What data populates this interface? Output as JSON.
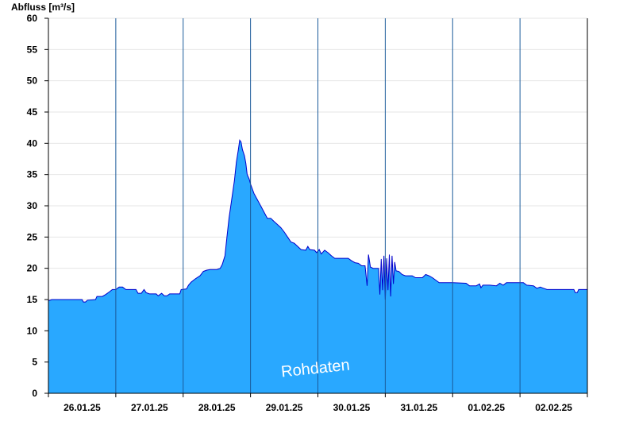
{
  "chart_data": {
    "type": "area",
    "ylabel": "Abfluss [m³/s]",
    "watermark": "Rohdaten",
    "ylim": [
      0,
      60
    ],
    "yticks": [
      0,
      5,
      10,
      15,
      20,
      25,
      30,
      35,
      40,
      45,
      50,
      55,
      60
    ],
    "xlim": [
      0,
      8
    ],
    "x_unit": "days",
    "days": [
      "26.01.25",
      "27.01.25",
      "28.01.25",
      "29.01.25",
      "30.01.25",
      "31.01.25",
      "01.02.25",
      "02.02.25"
    ],
    "grid_horizontal": true,
    "day_separators": true,
    "colors": {
      "fill": "#29a8ff",
      "line": "#0000cc",
      "grid": "#e6e6e6",
      "separator": "#1a5a9a",
      "axis": "#000000"
    },
    "series": [
      {
        "values": [
          [
            0.0,
            14.8
          ],
          [
            0.05,
            15.0
          ],
          [
            0.3,
            15.0
          ],
          [
            0.5,
            15.0
          ],
          [
            0.52,
            14.6
          ],
          [
            0.55,
            14.6
          ],
          [
            0.58,
            14.9
          ],
          [
            0.7,
            15.0
          ],
          [
            0.72,
            15.5
          ],
          [
            0.8,
            15.5
          ],
          [
            0.85,
            15.8
          ],
          [
            0.9,
            16.2
          ],
          [
            0.95,
            16.6
          ],
          [
            1.0,
            16.6
          ],
          [
            1.05,
            17.0
          ],
          [
            1.1,
            17.0
          ],
          [
            1.15,
            16.6
          ],
          [
            1.3,
            16.6
          ],
          [
            1.33,
            16.0
          ],
          [
            1.38,
            16.0
          ],
          [
            1.42,
            16.6
          ],
          [
            1.45,
            16.1
          ],
          [
            1.5,
            15.9
          ],
          [
            1.6,
            15.9
          ],
          [
            1.63,
            15.6
          ],
          [
            1.68,
            16.0
          ],
          [
            1.72,
            15.6
          ],
          [
            1.76,
            15.6
          ],
          [
            1.8,
            15.9
          ],
          [
            1.95,
            15.9
          ],
          [
            1.97,
            16.6
          ],
          [
            2.05,
            16.7
          ],
          [
            2.08,
            17.3
          ],
          [
            2.12,
            17.8
          ],
          [
            2.18,
            18.3
          ],
          [
            2.25,
            18.8
          ],
          [
            2.3,
            19.5
          ],
          [
            2.35,
            19.7
          ],
          [
            2.4,
            19.8
          ],
          [
            2.5,
            19.8
          ],
          [
            2.55,
            20.0
          ],
          [
            2.58,
            20.6
          ],
          [
            2.62,
            22.0
          ],
          [
            2.65,
            25.0
          ],
          [
            2.68,
            28.0
          ],
          [
            2.72,
            31.0
          ],
          [
            2.76,
            34.0
          ],
          [
            2.79,
            37.0
          ],
          [
            2.82,
            39.0
          ],
          [
            2.84,
            40.5
          ],
          [
            2.86,
            40.2
          ],
          [
            2.88,
            39.0
          ],
          [
            2.91,
            38.0
          ],
          [
            2.93,
            36.8
          ],
          [
            2.95,
            35.0
          ],
          [
            2.98,
            34.3
          ],
          [
            3.0,
            33.5
          ],
          [
            3.05,
            32.0
          ],
          [
            3.1,
            31.0
          ],
          [
            3.15,
            30.0
          ],
          [
            3.2,
            29.0
          ],
          [
            3.25,
            28.0
          ],
          [
            3.3,
            28.0
          ],
          [
            3.35,
            27.5
          ],
          [
            3.4,
            27.0
          ],
          [
            3.45,
            26.5
          ],
          [
            3.5,
            25.8
          ],
          [
            3.55,
            25.0
          ],
          [
            3.6,
            24.2
          ],
          [
            3.65,
            24.0
          ],
          [
            3.7,
            23.5
          ],
          [
            3.75,
            23.0
          ],
          [
            3.82,
            22.9
          ],
          [
            3.85,
            23.5
          ],
          [
            3.88,
            23.0
          ],
          [
            3.95,
            22.9
          ],
          [
            3.98,
            22.5
          ],
          [
            4.02,
            23.0
          ],
          [
            4.05,
            22.3
          ],
          [
            4.1,
            22.9
          ],
          [
            4.15,
            22.5
          ],
          [
            4.2,
            22.0
          ],
          [
            4.25,
            21.6
          ],
          [
            4.35,
            21.6
          ],
          [
            4.45,
            21.6
          ],
          [
            4.5,
            21.2
          ],
          [
            4.55,
            20.9
          ],
          [
            4.6,
            20.8
          ],
          [
            4.65,
            20.4
          ],
          [
            4.7,
            20.4
          ],
          [
            4.73,
            17.2
          ],
          [
            4.75,
            22.2
          ],
          [
            4.78,
            20.2
          ],
          [
            4.82,
            20.0
          ],
          [
            4.9,
            20.0
          ],
          [
            4.92,
            15.8
          ],
          [
            4.94,
            21.5
          ],
          [
            4.96,
            16.5
          ],
          [
            4.98,
            22.0
          ],
          [
            5.0,
            15.0
          ],
          [
            5.02,
            21.6
          ],
          [
            5.04,
            16.5
          ],
          [
            5.06,
            22.2
          ],
          [
            5.08,
            15.5
          ],
          [
            5.1,
            22.0
          ],
          [
            5.12,
            17.5
          ],
          [
            5.14,
            21.0
          ],
          [
            5.16,
            19.6
          ],
          [
            5.2,
            19.5
          ],
          [
            5.25,
            19.0
          ],
          [
            5.3,
            18.8
          ],
          [
            5.4,
            18.8
          ],
          [
            5.45,
            18.5
          ],
          [
            5.55,
            18.5
          ],
          [
            5.6,
            19.0
          ],
          [
            5.65,
            18.8
          ],
          [
            5.7,
            18.5
          ],
          [
            5.8,
            17.7
          ],
          [
            6.0,
            17.7
          ],
          [
            6.2,
            17.6
          ],
          [
            6.25,
            17.2
          ],
          [
            6.35,
            17.2
          ],
          [
            6.4,
            17.5
          ],
          [
            6.42,
            16.9
          ],
          [
            6.45,
            17.3
          ],
          [
            6.55,
            17.3
          ],
          [
            6.65,
            17.2
          ],
          [
            6.7,
            17.6
          ],
          [
            6.75,
            17.3
          ],
          [
            6.8,
            17.7
          ],
          [
            7.05,
            17.7
          ],
          [
            7.1,
            17.3
          ],
          [
            7.2,
            17.2
          ],
          [
            7.25,
            16.8
          ],
          [
            7.3,
            17.0
          ],
          [
            7.35,
            16.8
          ],
          [
            7.4,
            16.6
          ],
          [
            7.6,
            16.6
          ],
          [
            7.8,
            16.6
          ],
          [
            7.82,
            16.1
          ],
          [
            7.85,
            16.1
          ],
          [
            7.87,
            16.6
          ],
          [
            8.0,
            16.6
          ]
        ]
      }
    ]
  }
}
